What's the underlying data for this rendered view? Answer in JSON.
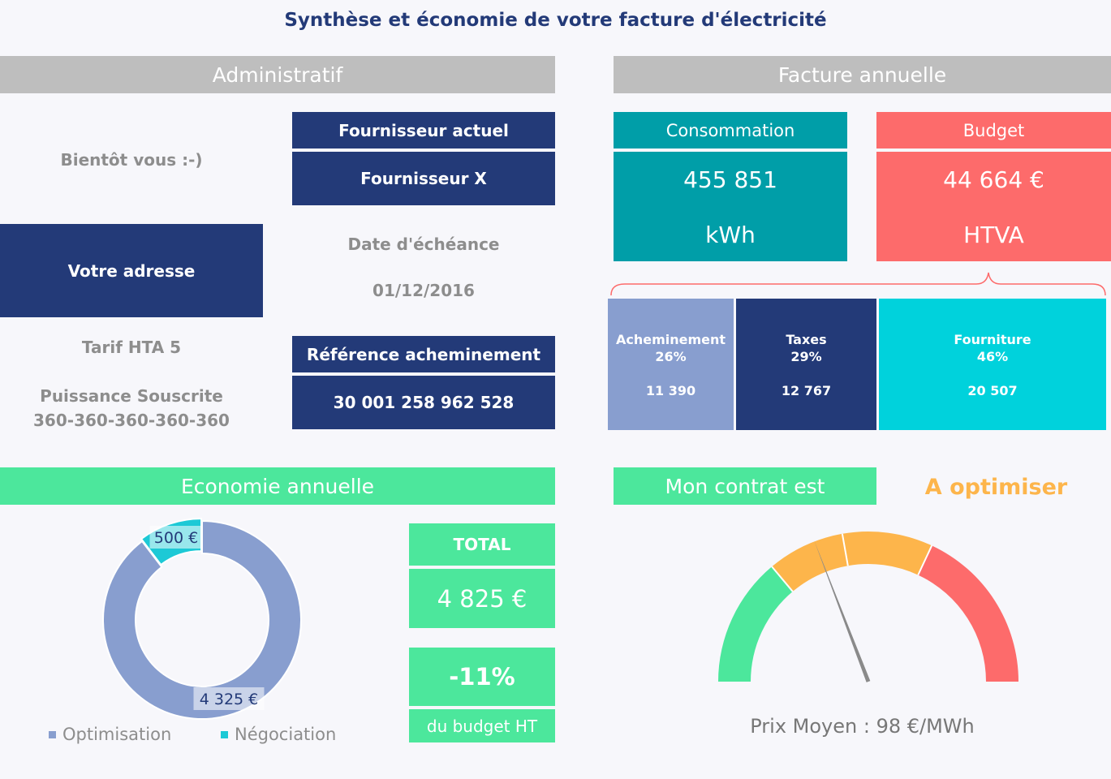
{
  "title": "Synthèse et économie de votre facture d'électricité",
  "admin": {
    "header": "Administratif",
    "greeting": "Bientôt vous :-)",
    "address": "Votre adresse",
    "supplier_label": "Fournisseur actuel",
    "supplier_value": "Fournisseur X",
    "due_label": "Date d'échéance",
    "due_value": "01/12/2016",
    "tariff": "Tarif HTA 5",
    "power_label": "Puissance Souscrite",
    "power_value": "360-360-360-360-360",
    "ref_label": "Référence acheminement",
    "ref_value": "30 001 258 962 528"
  },
  "facture": {
    "header": "Facture annuelle",
    "consumption_label": "Consommation",
    "consumption_value": "455 851",
    "consumption_unit": "kWh",
    "budget_label": "Budget",
    "budget_value": "44 664 €",
    "budget_unit": "HTVA",
    "breakdown": [
      {
        "name": "Acheminement",
        "pct": "26%",
        "amount": "11 390",
        "value": 11390,
        "color": "#889ecf"
      },
      {
        "name": "Taxes",
        "pct": "29%",
        "amount": "12 767",
        "value": 12767,
        "color": "#233a78"
      },
      {
        "name": "Fourniture",
        "pct": "46%",
        "amount": "20 507",
        "value": 20507,
        "color": "#00d2dc"
      }
    ]
  },
  "economie": {
    "header": "Economie annuelle",
    "total_label": "TOTAL",
    "total_value": "4 825 €",
    "percent": "-11%",
    "percent_label": "du budget HT"
  },
  "contrat": {
    "header": "Mon contrat est",
    "status": "A optimiser",
    "status_color": "#fdb54b",
    "prix_moyen": "Prix Moyen : 98 €/MWh",
    "gauge_colors": [
      "#4ce79c",
      "#fdb54b",
      "#fdb54b",
      "#fd6b6b"
    ]
  },
  "chart_data": {
    "type": "pie",
    "categories": [
      "Optimisation",
      "Négociation"
    ],
    "values": [
      4325,
      500
    ],
    "labels": [
      "4 325 €",
      "500 €"
    ],
    "colors": [
      "#889ecf",
      "#1dc9d6"
    ],
    "legend": "bottom"
  }
}
